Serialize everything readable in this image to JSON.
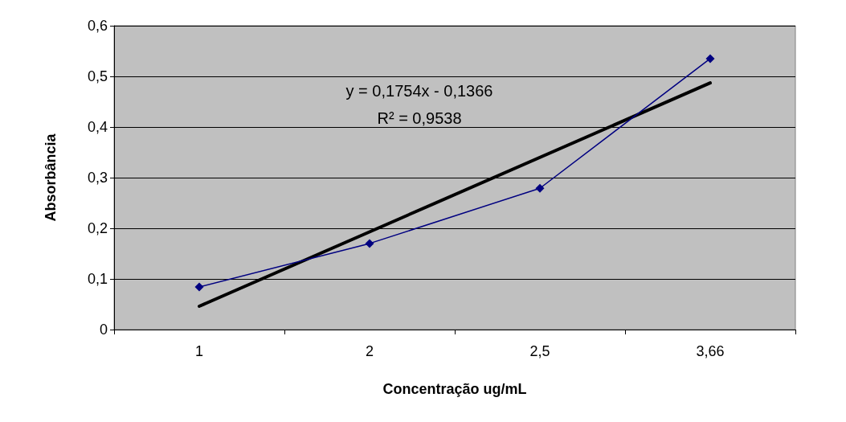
{
  "chart_data": {
    "type": "line",
    "xlabel": "Concentração ug/mL",
    "ylabel": "Absorbância",
    "categories": [
      "1",
      "2",
      "2,5",
      "3,66"
    ],
    "series": [
      {
        "color": "#000080",
        "values": [
          0.084,
          0.17,
          0.279,
          0.535
        ],
        "marker": "diamond"
      },
      {
        "type": "line",
        "color": "#000000",
        "x": [
          "1",
          "3,66"
        ],
        "values": [
          0.046,
          0.487
        ],
        "marker": "none"
      }
    ],
    "ylim": [
      0,
      0.6
    ],
    "yticks": [
      0,
      {
        "value": 0.1,
        "label": "0,1"
      },
      {
        "value": 0.2,
        "label": "0,2"
      },
      {
        "value": 0.3,
        "label": "0,3"
      },
      {
        "value": 0.4,
        "label": "0,4"
      },
      {
        "value": 0.5,
        "label": "0,5"
      },
      {
        "value": 0.6,
        "label": "0,6"
      }
    ],
    "grid": "y",
    "annotations": [
      "y = 0,1754x - 0,1366",
      "R² = 0,9538"
    ]
  }
}
